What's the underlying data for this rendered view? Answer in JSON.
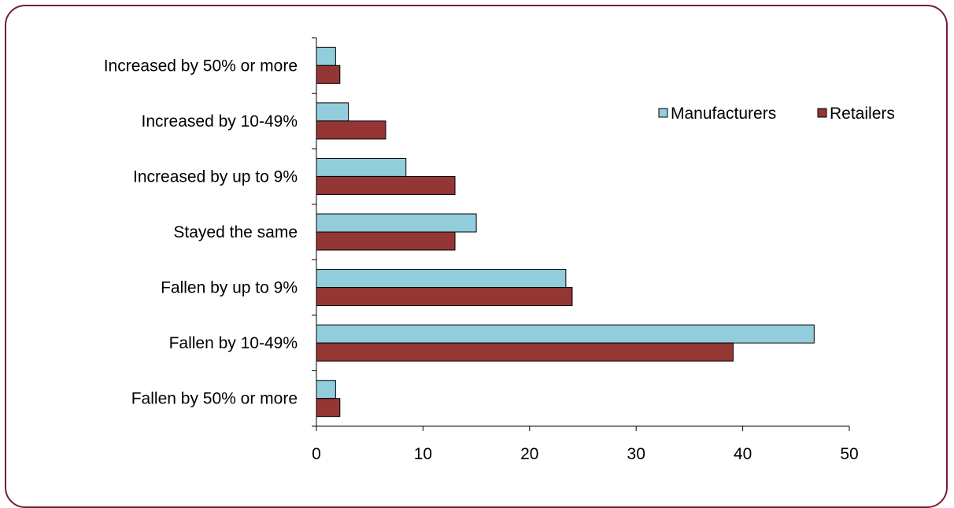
{
  "chart_data": {
    "type": "bar",
    "orientation": "horizontal",
    "categories": [
      "Increased by 50% or more",
      "Increased by 10-49%",
      "Increased by up to 9%",
      "Stayed the same",
      "Fallen by up to 9%",
      "Fallen by 10-49%",
      "Fallen by 50% or more"
    ],
    "series": [
      {
        "name": "Manufacturers",
        "color": "#92cddc",
        "values": [
          1.8,
          3.0,
          8.4,
          15.0,
          23.4,
          46.7,
          1.8
        ]
      },
      {
        "name": "Retailers",
        "color": "#943634",
        "values": [
          2.2,
          6.5,
          13.0,
          13.0,
          24.0,
          39.1,
          2.2
        ]
      }
    ],
    "xlim": [
      0,
      50
    ],
    "xticks": [
      "0",
      "10",
      "20",
      "30",
      "40",
      "50"
    ],
    "title": "",
    "xlabel": "",
    "ylabel": "",
    "grid": false,
    "legend_position": "top-right"
  },
  "colors": {
    "frame_border": "#7a1a3a"
  }
}
